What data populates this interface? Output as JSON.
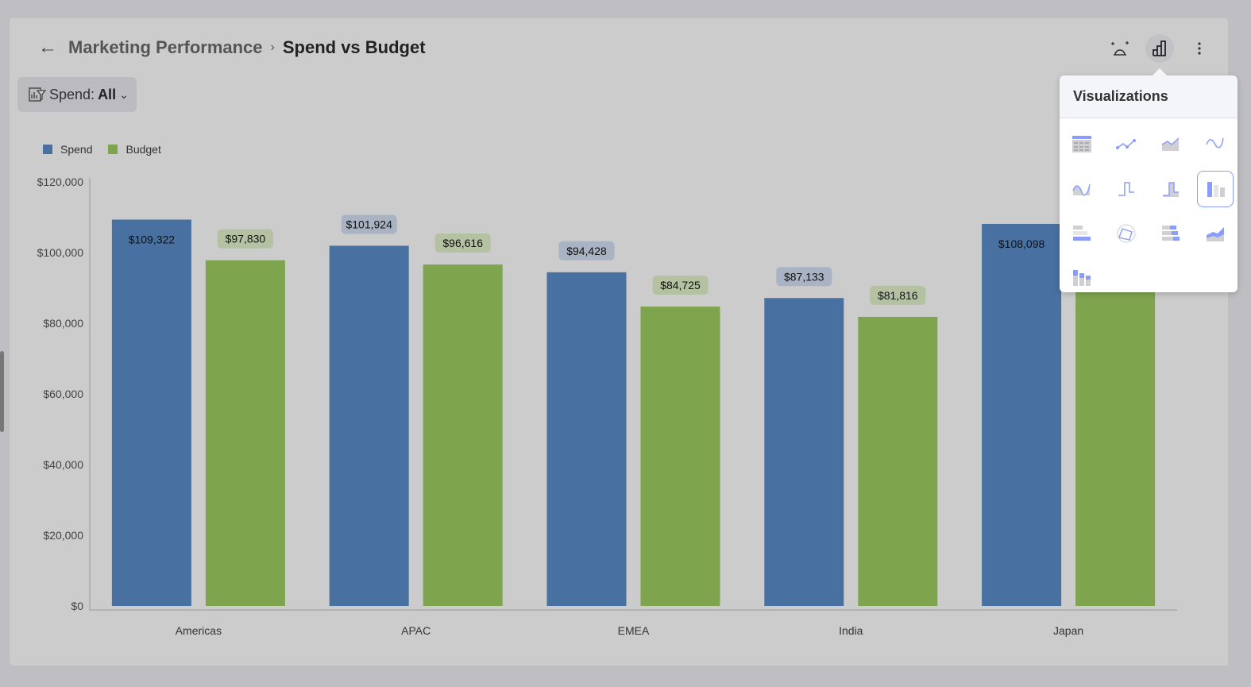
{
  "header": {
    "back_icon": "arrow-left-icon",
    "parent": "Marketing Performance",
    "separator": "›",
    "title": "Spend vs Budget"
  },
  "filter": {
    "label": "Spend:",
    "value": "All"
  },
  "toolbar": {
    "icons": [
      "ai-sparkle-icon",
      "bar-chart-icon",
      "more-vertical-icon"
    ]
  },
  "popover": {
    "title": "Visualizations",
    "items": [
      "grid",
      "line",
      "area",
      "spline",
      "spline-area",
      "step-line",
      "step-area",
      "column",
      "bar",
      "radar",
      "stacked-bar",
      "stacked-area",
      "stacked-column"
    ],
    "selected": "column"
  },
  "colors": {
    "spend": "#4870a0",
    "budget": "#7ea44e"
  },
  "chart_data": {
    "type": "bar",
    "categories": [
      "Americas",
      "APAC",
      "EMEA",
      "India",
      "Japan"
    ],
    "series": [
      {
        "name": "Spend",
        "values": [
          109322,
          101924,
          94428,
          87133,
          108098
        ],
        "labels": [
          "$109,322",
          "$101,924",
          "$94,428",
          "$87,133",
          "$108,098"
        ]
      },
      {
        "name": "Budget",
        "values": [
          97830,
          96616,
          84725,
          81816,
          null
        ],
        "labels": [
          "$97,830",
          "$96,616",
          "$84,725",
          "$81,816",
          ""
        ]
      }
    ],
    "ylim": [
      0,
      120000
    ],
    "yticks": [
      "$0",
      "$20,000",
      "$40,000",
      "$60,000",
      "$80,000",
      "$100,000",
      "$120,000"
    ],
    "legend": "top-left",
    "grid": false
  }
}
